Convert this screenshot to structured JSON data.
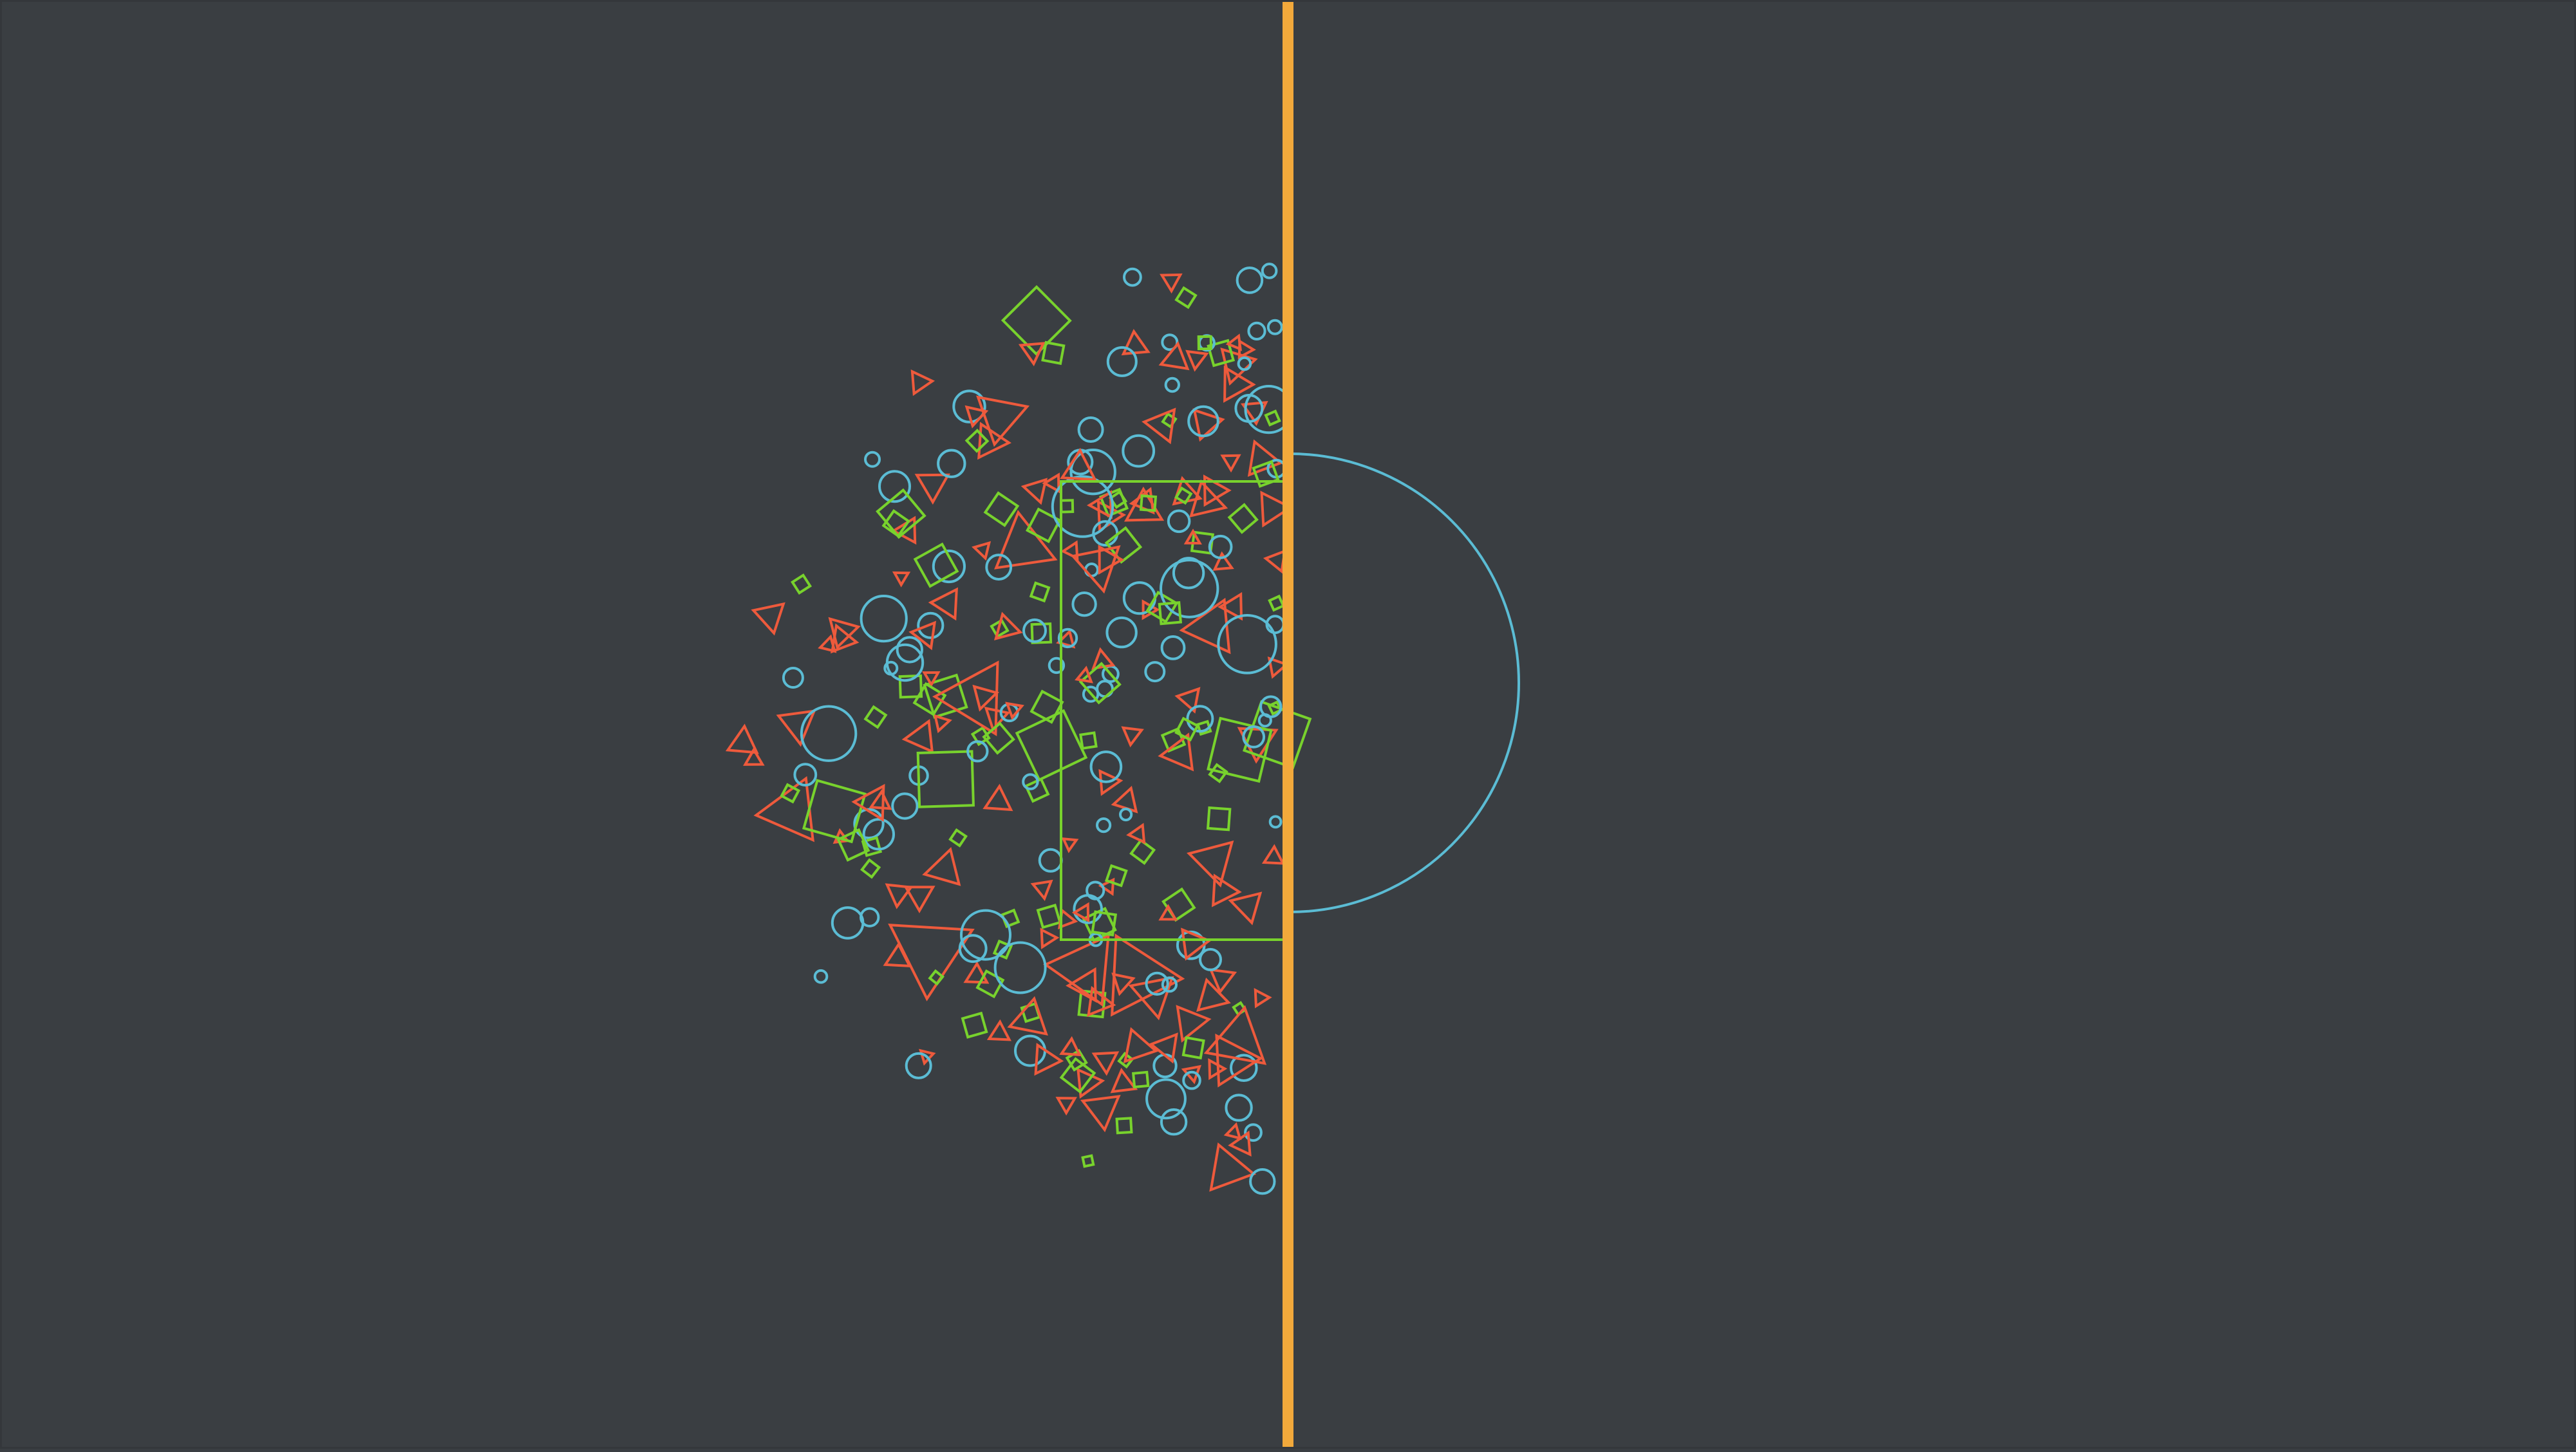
{
  "colors": {
    "background": "#3a3e42",
    "divider": "#f2a93b",
    "triangle": "#ee5a3c",
    "square": "#78d22d",
    "circle": "#5bbcd4"
  },
  "icons": {
    "triangle": "triangle-outline-icon",
    "square": "square-outline-icon",
    "circle": "circle-outline-icon"
  }
}
